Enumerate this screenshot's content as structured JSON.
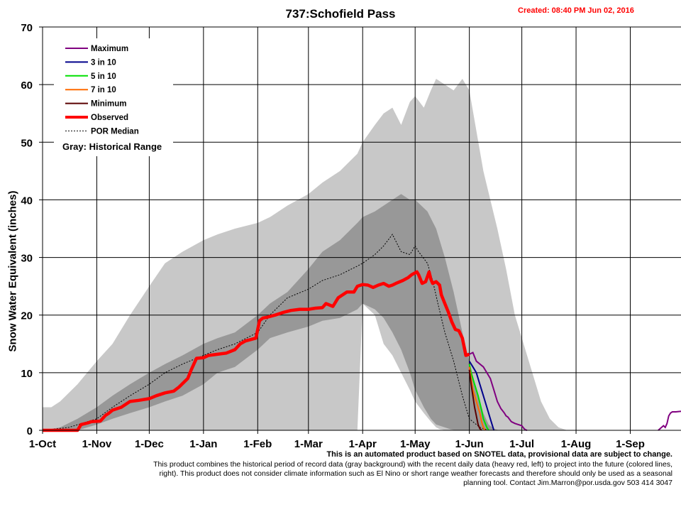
{
  "chart_data": {
    "type": "area",
    "title": "737:Schofield Pass",
    "created": "Created: 08:40 PM Jun 02, 2016",
    "ylabel": "Snow Water Equivalent (inches)",
    "xlabel": "",
    "ylim": [
      0,
      70
    ],
    "yticks": [
      0,
      10,
      20,
      30,
      40,
      50,
      60,
      70
    ],
    "xlim": [
      0,
      365
    ],
    "xticks": [
      {
        "label": "1-Oct",
        "day": 0
      },
      {
        "label": "1-Nov",
        "day": 31
      },
      {
        "label": "1-Dec",
        "day": 61
      },
      {
        "label": "1-Jan",
        "day": 92
      },
      {
        "label": "1-Feb",
        "day": 123
      },
      {
        "label": "1-Mar",
        "day": 152
      },
      {
        "label": "1-Apr",
        "day": 183
      },
      {
        "label": "1-May",
        "day": 213
      },
      {
        "label": "1-Jun",
        "day": 244
      },
      {
        "label": "1-Jul",
        "day": 274
      },
      {
        "label": "1-Aug",
        "day": 305
      },
      {
        "label": "1-Sep",
        "day": 336
      }
    ],
    "grid": true,
    "legend_position": "top-left",
    "legend": [
      {
        "label": "Maximum",
        "color": "#800080",
        "style": "solid"
      },
      {
        "label": "3 in 10",
        "color": "#00008b",
        "style": "solid"
      },
      {
        "label": "5 in 10",
        "color": "#00e000",
        "style": "solid"
      },
      {
        "label": "7 in 10",
        "color": "#ff6a00",
        "style": "solid"
      },
      {
        "label": "Minimum",
        "color": "#5a0000",
        "style": "solid"
      },
      {
        "label": "Observed",
        "color": "#ff0000",
        "style": "thick"
      },
      {
        "label": "POR Median",
        "color": "#000000",
        "style": "dashed"
      }
    ],
    "legend_note": "Gray: Historical Range",
    "colors": {
      "range_outer": "#c8c8c8",
      "range_inner": "#989898",
      "observed": "#ff0000",
      "median": "#000000"
    },
    "series": [
      {
        "name": "Historical Range (max)",
        "kind": "band_upper_outer",
        "x": [
          0,
          5,
          10,
          20,
          31,
          40,
          50,
          61,
          70,
          80,
          92,
          100,
          110,
          123,
          130,
          140,
          152,
          160,
          170,
          180,
          183,
          190,
          195,
          200,
          205,
          210,
          213,
          218,
          222,
          225,
          230,
          235,
          240,
          244,
          248,
          252,
          256,
          260,
          265,
          270,
          275,
          280,
          285,
          290,
          295,
          300,
          365
        ],
        "y": [
          4,
          4,
          5,
          8,
          12,
          15,
          20,
          25,
          29,
          31,
          33,
          34,
          35,
          36,
          37,
          39,
          41,
          43,
          45,
          48,
          50,
          53,
          55,
          56,
          53,
          57,
          58,
          56,
          59,
          61,
          60,
          59,
          61,
          59,
          52,
          45,
          40,
          35,
          28,
          20,
          15,
          10,
          5,
          2,
          0.5,
          0,
          0
        ]
      },
      {
        "name": "Historical Range (upper 70%)",
        "kind": "band_upper_inner",
        "x": [
          0,
          10,
          20,
          31,
          40,
          50,
          61,
          70,
          80,
          92,
          100,
          110,
          123,
          130,
          140,
          152,
          160,
          170,
          180,
          183,
          190,
          200,
          205,
          210,
          213,
          220,
          225,
          230,
          235,
          240,
          244,
          248,
          252,
          255,
          258,
          261
        ],
        "y": [
          0,
          0.5,
          2,
          4,
          6,
          8,
          10,
          11.5,
          13,
          15,
          16,
          17,
          20,
          22,
          24,
          28,
          31,
          33,
          36,
          37,
          38,
          40,
          41,
          40,
          40,
          38,
          35,
          30,
          24,
          17,
          12,
          7,
          3,
          1,
          0.3,
          0
        ]
      },
      {
        "name": "Historical Range (lower 30%)",
        "kind": "band_lower_inner",
        "x": [
          0,
          20,
          31,
          40,
          50,
          61,
          70,
          80,
          92,
          100,
          110,
          123,
          130,
          140,
          152,
          160,
          170,
          180,
          183,
          190,
          195,
          200,
          205,
          210,
          213,
          218,
          222,
          225,
          230,
          233,
          236
        ],
        "y": [
          0,
          0,
          1,
          2,
          3,
          4,
          5,
          6,
          8,
          10,
          11,
          14,
          16,
          17,
          18,
          19,
          19.5,
          21,
          22,
          21,
          19.5,
          17,
          14,
          10,
          7,
          4,
          2,
          1,
          0.5,
          0.2,
          0
        ]
      },
      {
        "name": "Historical Range (min)",
        "kind": "band_lower_outer",
        "x": [
          0,
          180,
          183,
          190,
          195,
          200,
          205,
          210,
          213,
          218,
          222,
          225,
          227,
          229,
          230
        ],
        "y": [
          0,
          0,
          22,
          20,
          15,
          13,
          10,
          7,
          5,
          3,
          1.5,
          0.5,
          0.2,
          0.1,
          0
        ]
      },
      {
        "name": "POR Median",
        "kind": "median",
        "x": [
          0,
          15,
          31,
          40,
          50,
          61,
          70,
          80,
          92,
          100,
          110,
          123,
          130,
          140,
          152,
          160,
          170,
          180,
          183,
          190,
          195,
          200,
          205,
          210,
          213,
          215,
          220,
          223,
          226,
          230,
          235,
          240,
          244,
          250,
          255,
          260
        ],
        "y": [
          0,
          0.5,
          2,
          4,
          6,
          8,
          10,
          11.5,
          13,
          14,
          15,
          17,
          20,
          23,
          24.5,
          26,
          27,
          28.5,
          29,
          30.5,
          32,
          34,
          31,
          30.5,
          32,
          31,
          29,
          26,
          22,
          17,
          12,
          6,
          2,
          0.5,
          0,
          0
        ]
      },
      {
        "name": "Observed",
        "kind": "observed",
        "x": [
          0,
          20,
          22,
          26,
          28,
          33,
          36,
          38,
          40,
          45,
          50,
          55,
          61,
          65,
          70,
          75,
          78,
          83,
          85,
          88,
          92,
          95,
          100,
          105,
          110,
          113,
          116,
          122,
          124,
          126,
          128,
          133,
          138,
          142,
          147,
          152,
          156,
          160,
          162,
          166,
          169,
          174,
          178,
          180,
          183,
          186,
          189,
          192,
          195,
          198,
          200,
          202,
          206,
          209,
          211,
          214,
          215,
          217,
          219,
          221,
          222,
          223,
          225,
          227,
          228,
          230,
          232,
          234,
          236,
          238,
          240,
          242,
          244
        ],
        "y": [
          0,
          0,
          1,
          1.3,
          1.5,
          1.6,
          2.6,
          3,
          3.5,
          4,
          5,
          5.2,
          5.5,
          6,
          6.5,
          6.8,
          7.5,
          9,
          10.5,
          12.5,
          12.6,
          13,
          13.2,
          13.4,
          14,
          15,
          15.5,
          16,
          19,
          19.5,
          19.6,
          20,
          20.5,
          20.8,
          21,
          21,
          21.2,
          21.3,
          22,
          21.5,
          23,
          24,
          24,
          25,
          25.3,
          25.2,
          24.8,
          25.2,
          25.5,
          25,
          25.2,
          25.5,
          26,
          26.5,
          27,
          27.5,
          27,
          25.5,
          25.8,
          27.5,
          26.2,
          25.5,
          25.8,
          25.2,
          23.5,
          22,
          20.5,
          18.8,
          17.5,
          17.3,
          16,
          13,
          13.2
        ]
      },
      {
        "name": "Maximum",
        "kind": "projection",
        "color": "#800080",
        "x": [
          244,
          246,
          248,
          252,
          256,
          258,
          260,
          262,
          264,
          265,
          266,
          268,
          270,
          272,
          274,
          275,
          276,
          277
        ],
        "y": [
          13.2,
          13.5,
          12,
          11,
          9,
          7,
          5,
          3.8,
          3,
          2.5,
          2.3,
          1.5,
          1.2,
          1,
          0.8,
          0.4,
          0.1,
          0
        ]
      },
      {
        "name": "3 in 10",
        "kind": "projection",
        "color": "#00008b",
        "x": [
          244,
          246,
          248,
          250,
          252,
          254,
          256,
          257,
          258
        ],
        "y": [
          12,
          11,
          10,
          8,
          6,
          4,
          2,
          1,
          0
        ]
      },
      {
        "name": "5 in 10",
        "kind": "projection",
        "color": "#00e000",
        "x": [
          244,
          245,
          247,
          249,
          251,
          252,
          254,
          255
        ],
        "y": [
          11.5,
          10,
          8,
          6,
          3.5,
          2,
          0.5,
          0
        ]
      },
      {
        "name": "7 in 10",
        "kind": "projection",
        "color": "#ff6a00",
        "x": [
          244,
          245,
          246,
          248,
          250,
          251,
          252,
          253
        ],
        "y": [
          11,
          9,
          7,
          5,
          3,
          1.5,
          0.5,
          0
        ]
      },
      {
        "name": "Minimum",
        "kind": "projection",
        "color": "#5a0000",
        "x": [
          244,
          245,
          246,
          247,
          248,
          249,
          250,
          251
        ],
        "y": [
          10.5,
          8,
          6,
          4,
          2.5,
          1,
          0.3,
          0
        ]
      },
      {
        "name": "Maximum (late season)",
        "kind": "projection",
        "color": "#800080",
        "x": [
          352,
          355,
          356,
          357,
          358,
          359,
          360,
          362,
          365
        ],
        "y": [
          0,
          0.8,
          0.5,
          1.2,
          2.5,
          3,
          3.2,
          3.2,
          3.3
        ]
      }
    ]
  },
  "footnote": {
    "line1": "This is an automated product based on SNOTEL data, provisional data are subject to change.",
    "line2": "This product combines the historical period of record data (gray background) with the recent daily data (heavy red, left) to project into the future (colored lines, right). This product does not consider climate information such as El Nino or short range weather forecasts and therefore should only be used as a seasonal planning tool. Contact Jim.Marron@por.usda.gov 503 414 3047"
  }
}
